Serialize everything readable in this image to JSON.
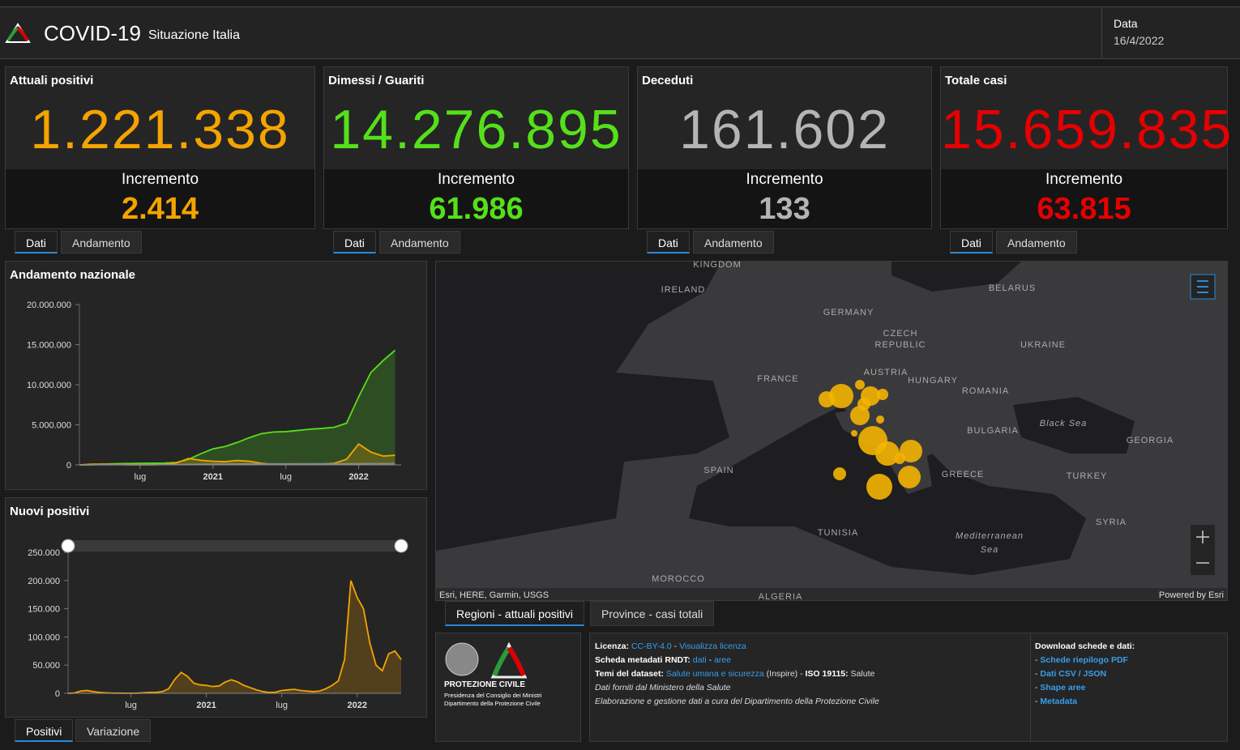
{
  "header": {
    "title": "COVID-19",
    "subtitle": "Situazione Italia",
    "date_label": "Data",
    "date": "16/4/2022"
  },
  "cards": [
    {
      "title": "Attuali positivi",
      "value": "1.221.338",
      "increment_label": "Incremento",
      "increment": "2.414",
      "color": "#f4a400",
      "tabs": [
        "Dati",
        "Andamento"
      ]
    },
    {
      "title": "Dimessi / Guariti",
      "value": "14.276.895",
      "increment_label": "Incremento",
      "increment": "61.986",
      "color": "#55e01a",
      "tabs": [
        "Dati",
        "Andamento"
      ]
    },
    {
      "title": "Deceduti",
      "value": "161.602",
      "increment_label": "Incremento",
      "increment": "133",
      "color": "#b4b4b4",
      "tabs": [
        "Dati",
        "Andamento"
      ]
    },
    {
      "title": "Totale casi",
      "value": "15.659.835",
      "increment_label": "Incremento",
      "increment": "63.815",
      "color": "#e60000",
      "tabs": [
        "Dati",
        "Andamento"
      ]
    }
  ],
  "national_chart": {
    "type": "line",
    "title": "Andamento nazionale",
    "x": [
      0,
      1,
      2,
      3,
      4,
      5,
      6,
      7,
      8,
      9,
      10,
      11,
      12,
      13,
      14,
      15,
      16,
      17,
      18,
      19,
      20,
      21,
      22,
      23,
      24,
      25,
      26
    ],
    "xlim": [
      0,
      26.5
    ],
    "xticks": [
      {
        "value": 5,
        "label": "lug"
      },
      {
        "value": 11,
        "label": "2021"
      },
      {
        "value": 17,
        "label": "lug"
      },
      {
        "value": 23,
        "label": "2022"
      }
    ],
    "ylim": [
      0,
      20000000
    ],
    "yticks": [
      0,
      {
        "value": 5000000,
        "label": "5.000.000"
      },
      {
        "value": 10000000,
        "label": "10.000.000"
      },
      {
        "value": 15000000,
        "label": "15.000.000"
      },
      {
        "value": 20000000,
        "label": "20.000.000"
      }
    ],
    "series": [
      {
        "color": "#55e01a",
        "values": [
          0,
          15000,
          100000,
          150000,
          180000,
          200000,
          210000,
          220000,
          300000,
          700000,
          1400000,
          2000000,
          2300000,
          2800000,
          3400000,
          3900000,
          4100000,
          4150000,
          4300000,
          4450000,
          4550000,
          4700000,
          5200000,
          8500000,
          11500000,
          13000000,
          14300000
        ]
      },
      {
        "color": "#f4a400",
        "values": [
          0,
          80000,
          100000,
          50000,
          20000,
          13000,
          20000,
          50000,
          250000,
          800000,
          570000,
          450000,
          400000,
          550000,
          450000,
          200000,
          50000,
          100000,
          130000,
          100000,
          100000,
          200000,
          700000,
          2600000,
          1600000,
          1100000,
          1200000
        ]
      },
      {
        "color": "#8a8a8a",
        "values": [
          0,
          10000,
          30000,
          34000,
          35000,
          35000,
          36000,
          36000,
          40000,
          60000,
          74000,
          90000,
          98000,
          110000,
          120000,
          126000,
          128000,
          128000,
          130000,
          131000,
          132000,
          134000,
          137000,
          145000,
          153000,
          158000,
          161000
        ]
      }
    ]
  },
  "new_positives": {
    "type": "line",
    "title": "Nuovi positivi",
    "x": [
      0,
      0.5,
      1,
      1.5,
      2,
      2.5,
      3,
      3.5,
      4,
      4.5,
      5,
      5.5,
      6,
      6.5,
      7,
      7.5,
      8,
      8.5,
      9,
      9.5,
      10,
      10.5,
      11,
      11.5,
      12,
      12.5,
      13,
      13.5,
      14,
      14.5,
      15,
      15.5,
      16,
      16.5,
      17,
      17.5,
      18,
      18.5,
      19,
      19.5,
      20,
      20.5,
      21,
      21.5,
      22,
      22.5,
      23,
      23.5,
      24,
      24.5,
      25,
      25.5,
      26,
      26.5
    ],
    "xlim": [
      0,
      26.5
    ],
    "xticks": [
      {
        "value": 5,
        "label": "lug"
      },
      {
        "value": 11,
        "label": "2021"
      },
      {
        "value": 17,
        "label": "lug"
      },
      {
        "value": 23,
        "label": "2022"
      }
    ],
    "ylim": [
      0,
      250000
    ],
    "yticks": [
      0,
      {
        "value": 50000,
        "label": "50.000"
      },
      {
        "value": 100000,
        "label": "100.000"
      },
      {
        "value": 150000,
        "label": "150.000"
      },
      {
        "value": 200000,
        "label": "200.000"
      },
      {
        "value": 250000,
        "label": "250.000"
      }
    ],
    "series": [
      {
        "color": "#f4a400",
        "values": [
          0,
          500,
          4000,
          5000,
          3000,
          1500,
          800,
          400,
          300,
          200,
          200,
          300,
          800,
          1500,
          1700,
          3000,
          8000,
          25000,
          37000,
          30000,
          18000,
          15000,
          14000,
          12000,
          13000,
          20000,
          24000,
          20000,
          14000,
          10000,
          6000,
          3000,
          1500,
          2000,
          5000,
          6000,
          7000,
          5000,
          4000,
          3000,
          4000,
          8000,
          14000,
          22000,
          60000,
          200000,
          170000,
          150000,
          90000,
          50000,
          40000,
          70000,
          75000,
          60000
        ]
      }
    ],
    "tabs": [
      "Positivi",
      "Variazione"
    ]
  },
  "map": {
    "labels": [
      "KINGDOM",
      "IRELAND",
      "GERMANY",
      "CZECH",
      "REPUBLIC",
      "BELARUS",
      "UKRAINE",
      "FRANCE",
      "AUSTRIA",
      "HUNGARY",
      "ROMANIA",
      "BULGARIA",
      "Black Sea",
      "GEORGIA",
      "SPAIN",
      "GREECE",
      "TURKEY",
      "SYRIA",
      "TUNISIA",
      "Mediterranean",
      "Sea",
      "MOROCCO",
      "ALGERIA"
    ],
    "attribution": "Esri, HERE, Garmin, USGS",
    "powered_by": "Powered by Esri",
    "tabs": [
      "Regioni - attuali positivi",
      "Province - casi totali"
    ]
  },
  "footer": {
    "org": [
      "PROTEZIONE CIVILE",
      "Presidenza del Consiglio dei Ministri",
      "Dipartimento della Protezione Civile"
    ],
    "info": [
      [
        "Licenza:",
        "CC-BY-4.0",
        " - ",
        "Visualizza licenza"
      ],
      [
        "Scheda metadati RNDT:",
        "dati",
        " - ",
        "aree"
      ],
      [
        "Temi del dataset:",
        "Salute umana e sicurezza",
        " (Inspire) - ",
        "ISO 19115:",
        " Salute"
      ],
      [
        "Dati forniti dal Ministero della Salute"
      ],
      [
        "Elaborazione e gestione dati a cura del Dipartimento della Protezione Civile"
      ]
    ],
    "downloads": {
      "title": "Download schede e dati:",
      "bullet": "- ",
      "links": [
        "Schede riepilogo PDF",
        "Dati CSV / JSON",
        "Shape aree",
        "Metadata"
      ]
    }
  }
}
